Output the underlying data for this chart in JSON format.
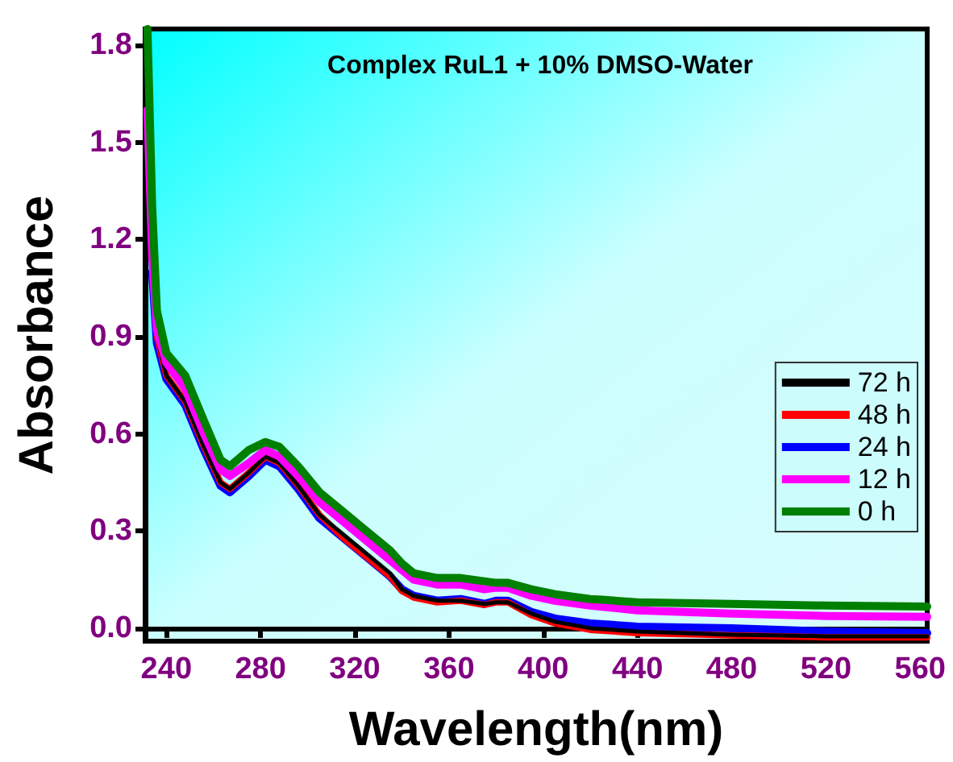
{
  "chart_data": {
    "type": "line",
    "title": "Complex RuL1 + 10% DMSO-Water",
    "xlabel": "Wavelength(nm)",
    "ylabel": "Absorbance",
    "xlim": [
      231,
      563
    ],
    "ylim": [
      -0.04,
      1.85
    ],
    "xticks": [
      240,
      280,
      320,
      360,
      400,
      440,
      480,
      520,
      560
    ],
    "yticks": [
      {
        "value": 0,
        "label": "0.0"
      },
      0.3,
      0.6,
      0.9,
      1.2,
      1.5,
      1.8
    ],
    "grid": false,
    "legend": "right",
    "marker": "none",
    "line_style": "solid",
    "series": [
      {
        "name": "72 h",
        "color": "#000000",
        "x": [
          232,
          234,
          236,
          240,
          248,
          256,
          263,
          267,
          275,
          282,
          288,
          296,
          305,
          315,
          325,
          335,
          340,
          345,
          355,
          365,
          375,
          380,
          385,
          395,
          405,
          420,
          440,
          480,
          520,
          563
        ],
        "values": [
          1.6,
          1.1,
          0.9,
          0.78,
          0.7,
          0.56,
          0.45,
          0.43,
          0.48,
          0.53,
          0.51,
          0.44,
          0.35,
          0.29,
          0.23,
          0.17,
          0.12,
          0.1,
          0.085,
          0.085,
          0.075,
          0.08,
          0.08,
          0.045,
          0.02,
          0.0,
          -0.01,
          -0.02,
          -0.025,
          -0.025
        ]
      },
      {
        "name": "48 h",
        "color": "#ff0000",
        "x": [
          236,
          240,
          248,
          256,
          263,
          267,
          275,
          282,
          288,
          296,
          305,
          315,
          325,
          335,
          340,
          345,
          355,
          365,
          375,
          380,
          385,
          395,
          405,
          420,
          440,
          480,
          520,
          563
        ],
        "values": [
          0.9,
          0.78,
          0.7,
          0.56,
          0.45,
          0.43,
          0.48,
          0.53,
          0.51,
          0.44,
          0.35,
          0.28,
          0.22,
          0.16,
          0.115,
          0.095,
          0.08,
          0.085,
          0.072,
          0.08,
          0.08,
          0.04,
          0.015,
          -0.005,
          -0.015,
          -0.022,
          -0.028,
          -0.028
        ]
      },
      {
        "name": "24 h",
        "color": "#0000ff",
        "x": [
          234,
          236,
          240,
          248,
          256,
          263,
          267,
          275,
          282,
          288,
          296,
          305,
          315,
          325,
          335,
          340,
          345,
          355,
          365,
          375,
          380,
          385,
          395,
          405,
          420,
          440,
          480,
          520,
          563
        ],
        "values": [
          1.1,
          0.88,
          0.77,
          0.69,
          0.55,
          0.44,
          0.42,
          0.47,
          0.52,
          0.5,
          0.43,
          0.34,
          0.28,
          0.22,
          0.16,
          0.12,
          0.1,
          0.085,
          0.09,
          0.075,
          0.085,
          0.085,
          0.05,
          0.03,
          0.015,
          0.005,
          0.0,
          -0.01,
          -0.015
        ]
      },
      {
        "name": "12 h",
        "color": "#ff00ff",
        "x": [
          232,
          234,
          236,
          240,
          248,
          256,
          263,
          267,
          275,
          282,
          288,
          296,
          305,
          315,
          325,
          335,
          340,
          345,
          355,
          365,
          375,
          380,
          385,
          395,
          405,
          420,
          440,
          480,
          520,
          563
        ],
        "values": [
          1.6,
          1.15,
          0.92,
          0.82,
          0.74,
          0.6,
          0.49,
          0.47,
          0.51,
          0.55,
          0.53,
          0.47,
          0.39,
          0.33,
          0.27,
          0.21,
          0.18,
          0.15,
          0.135,
          0.135,
          0.12,
          0.125,
          0.125,
          0.1,
          0.085,
          0.07,
          0.055,
          0.045,
          0.038,
          0.035
        ]
      },
      {
        "name": "0 h",
        "color": "#008000",
        "x": [
          232,
          234,
          236,
          240,
          248,
          256,
          263,
          267,
          275,
          282,
          288,
          296,
          305,
          315,
          325,
          335,
          340,
          345,
          355,
          365,
          375,
          380,
          385,
          395,
          405,
          420,
          425,
          440,
          480,
          520,
          563
        ],
        "values": [
          1.85,
          1.3,
          0.98,
          0.85,
          0.78,
          0.64,
          0.52,
          0.5,
          0.55,
          0.575,
          0.56,
          0.5,
          0.42,
          0.36,
          0.3,
          0.24,
          0.2,
          0.17,
          0.155,
          0.155,
          0.145,
          0.14,
          0.14,
          0.12,
          0.105,
          0.09,
          0.088,
          0.08,
          0.075,
          0.07,
          0.067
        ]
      }
    ]
  }
}
